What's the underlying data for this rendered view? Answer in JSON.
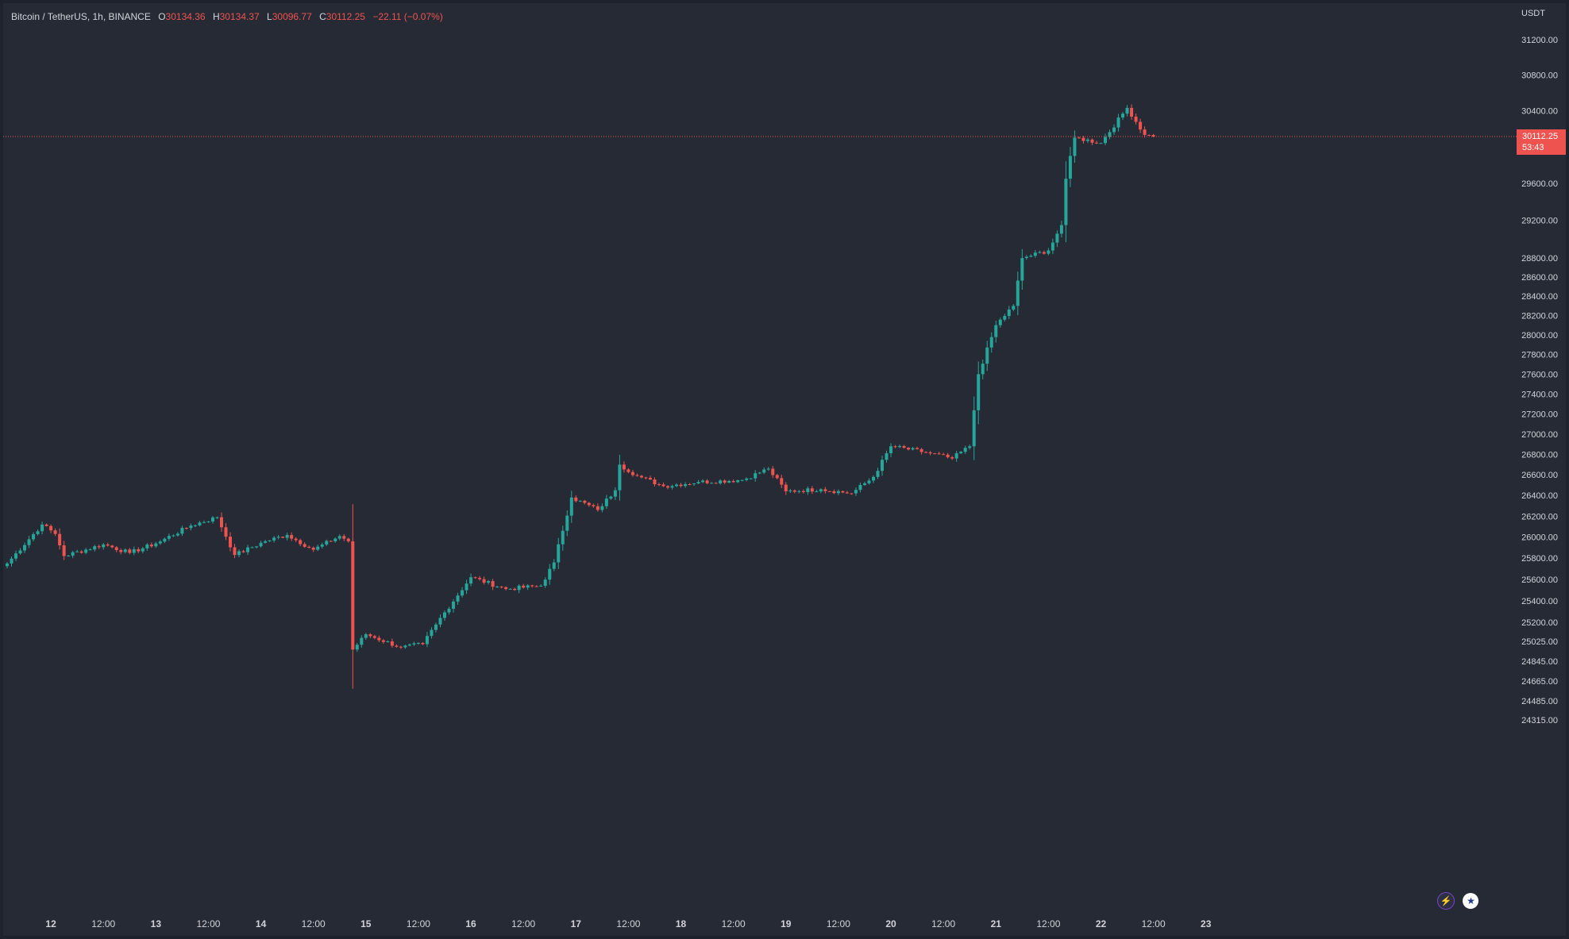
{
  "legend": {
    "title": "Bitcoin / TetherUS, 1h, BINANCE",
    "open_label": "O",
    "open": "30134.36",
    "high_label": "H",
    "high": "30134.37",
    "low_label": "L",
    "low": "30096.77",
    "close_label": "C",
    "close": "30112.25",
    "change": "−22.11 (−0.07%)"
  },
  "price_axis": {
    "currency": "USDT",
    "ticks": [
      "31200.00",
      "30800.00",
      "30400.00",
      "29600.00",
      "29200.00",
      "28800.00",
      "28600.00",
      "28400.00",
      "28200.00",
      "28000.00",
      "27800.00",
      "27600.00",
      "27400.00",
      "27200.00",
      "27000.00",
      "26800.00",
      "26600.00",
      "26400.00",
      "26200.00",
      "26000.00",
      "25800.00",
      "25600.00",
      "25400.00",
      "25200.00",
      "25025.00",
      "24845.00",
      "24665.00",
      "24485.00",
      "24315.00"
    ]
  },
  "current_price": {
    "value": "30112.25",
    "countdown": "53:43"
  },
  "time_axis": {
    "ticks": [
      {
        "label": "12",
        "bold": true
      },
      {
        "label": "12:00",
        "bold": false
      },
      {
        "label": "13",
        "bold": true
      },
      {
        "label": "12:00",
        "bold": false
      },
      {
        "label": "14",
        "bold": true
      },
      {
        "label": "12:00",
        "bold": false
      },
      {
        "label": "15",
        "bold": true
      },
      {
        "label": "12:00",
        "bold": false
      },
      {
        "label": "16",
        "bold": true
      },
      {
        "label": "12:00",
        "bold": false
      },
      {
        "label": "17",
        "bold": true
      },
      {
        "label": "12:00",
        "bold": false
      },
      {
        "label": "18",
        "bold": true
      },
      {
        "label": "12:00",
        "bold": false
      },
      {
        "label": "19",
        "bold": true
      },
      {
        "label": "12:00",
        "bold": false
      },
      {
        "label": "20",
        "bold": true
      },
      {
        "label": "12:00",
        "bold": false
      },
      {
        "label": "21",
        "bold": true
      },
      {
        "label": "12:00",
        "bold": false
      },
      {
        "label": "22",
        "bold": true
      },
      {
        "label": "12:00",
        "bold": false
      },
      {
        "label": "23",
        "bold": true
      }
    ]
  },
  "colors": {
    "up": "#26a69a",
    "down": "#ef5350",
    "background": "#262a34",
    "text": "#d1d4dc"
  },
  "icons": [
    "lightning-icon",
    "us-flag-icon"
  ],
  "chart_data": {
    "type": "candlestick",
    "title": "Bitcoin / TetherUS, 1h, BINANCE",
    "symbol": "BTCUSDT",
    "exchange": "BINANCE",
    "interval": "1h",
    "currency": "USDT",
    "x_start": "2023-06-11 14:00",
    "ylim": [
      24315,
      31300
    ],
    "scale": "log",
    "grid": false,
    "last_price": 30112.25,
    "keyframes": [
      {
        "time": "2023-06-11 14:00",
        "price": 25750
      },
      {
        "time": "2023-06-11 22:00",
        "price": 26120
      },
      {
        "time": "2023-06-12 01:00",
        "price": 26030
      },
      {
        "time": "2023-06-12 03:00",
        "price": 25820
      },
      {
        "time": "2023-06-12 12:00",
        "price": 25930
      },
      {
        "time": "2023-06-12 18:00",
        "price": 25850
      },
      {
        "time": "2023-06-13 00:00",
        "price": 25940
      },
      {
        "time": "2023-06-13 08:00",
        "price": 26110
      },
      {
        "time": "2023-06-13 14:00",
        "price": 26190
      },
      {
        "time": "2023-06-13 18:00",
        "price": 25830
      },
      {
        "time": "2023-06-14 01:00",
        "price": 25960
      },
      {
        "time": "2023-06-14 06:00",
        "price": 26020
      },
      {
        "time": "2023-06-14 12:00",
        "price": 25880
      },
      {
        "time": "2023-06-14 18:00",
        "price": 26010
      },
      {
        "time": "2023-06-14 20:00",
        "price": 25960
      },
      {
        "time": "2023-06-14 21:00",
        "price": 24950
      },
      {
        "time": "2023-06-15 00:00",
        "price": 25090
      },
      {
        "time": "2023-06-15 08:00",
        "price": 24970
      },
      {
        "time": "2023-06-15 13:00",
        "price": 25000
      },
      {
        "time": "2023-06-15 16:00",
        "price": 25180
      },
      {
        "time": "2023-06-16 00:00",
        "price": 25620
      },
      {
        "time": "2023-06-16 08:00",
        "price": 25510
      },
      {
        "time": "2023-06-16 16:00",
        "price": 25540
      },
      {
        "time": "2023-06-16 19:00",
        "price": 25760
      },
      {
        "time": "2023-06-16 23:00",
        "price": 26380
      },
      {
        "time": "2023-06-17 05:00",
        "price": 26260
      },
      {
        "time": "2023-06-17 09:00",
        "price": 26450
      },
      {
        "time": "2023-06-17 10:00",
        "price": 26700
      },
      {
        "time": "2023-06-17 14:00",
        "price": 26590
      },
      {
        "time": "2023-06-17 20:00",
        "price": 26490
      },
      {
        "time": "2023-06-18 04:00",
        "price": 26530
      },
      {
        "time": "2023-06-18 14:00",
        "price": 26550
      },
      {
        "time": "2023-06-18 20:00",
        "price": 26660
      },
      {
        "time": "2023-06-19 00:00",
        "price": 26440
      },
      {
        "time": "2023-06-19 08:00",
        "price": 26460
      },
      {
        "time": "2023-06-19 15:00",
        "price": 26420
      },
      {
        "time": "2023-06-19 20:00",
        "price": 26580
      },
      {
        "time": "2023-06-20 00:00",
        "price": 26880
      },
      {
        "time": "2023-06-20 08:00",
        "price": 26820
      },
      {
        "time": "2023-06-20 14:00",
        "price": 26760
      },
      {
        "time": "2023-06-20 18:00",
        "price": 26880
      },
      {
        "time": "2023-06-20 20:00",
        "price": 27600
      },
      {
        "time": "2023-06-21 00:00",
        "price": 28100
      },
      {
        "time": "2023-06-21 04:00",
        "price": 28300
      },
      {
        "time": "2023-06-21 06:00",
        "price": 28800
      },
      {
        "time": "2023-06-21 12:00",
        "price": 28880
      },
      {
        "time": "2023-06-21 15:00",
        "price": 29150
      },
      {
        "time": "2023-06-21 16:00",
        "price": 29650
      },
      {
        "time": "2023-06-21 18:00",
        "price": 30100
      },
      {
        "time": "2023-06-22 00:00",
        "price": 30040
      },
      {
        "time": "2023-06-22 06:00",
        "price": 30430
      },
      {
        "time": "2023-06-22 10:00",
        "price": 30130
      },
      {
        "time": "2023-06-22 12:00",
        "price": 30112
      }
    ]
  }
}
